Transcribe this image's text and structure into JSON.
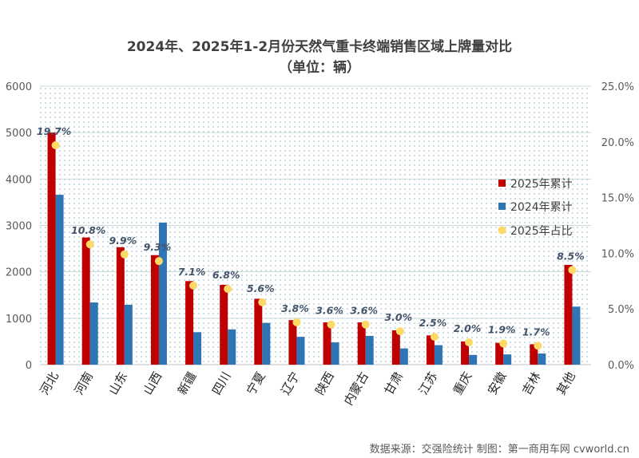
{
  "chart_data": {
    "type": "bar",
    "title": "2024年、2025年1-2月份天然气重卡终端销售区域上牌量对比",
    "subtitle": "（单位：辆）",
    "categories": [
      "河北",
      "河南",
      "山东",
      "山西",
      "新疆",
      "四川",
      "宁夏",
      "辽宁",
      "陕西",
      "内蒙古",
      "甘肃",
      "江苏",
      "重庆",
      "安徽",
      "吉林",
      "其他"
    ],
    "series": [
      {
        "name": "2025年累计",
        "type": "bar",
        "axis": "left",
        "color": "#c00000",
        "values": [
          5000,
          2740,
          2530,
          2360,
          1800,
          1720,
          1420,
          960,
          910,
          910,
          740,
          630,
          500,
          470,
          440,
          2150
        ]
      },
      {
        "name": "2024年累计",
        "type": "bar",
        "axis": "left",
        "color": "#2e75b6",
        "values": [
          3660,
          1340,
          1290,
          3060,
          700,
          760,
          900,
          600,
          480,
          620,
          350,
          420,
          210,
          220,
          240,
          1250
        ]
      },
      {
        "name": "2025年占比",
        "type": "scatter",
        "axis": "right",
        "color": "#ffd966",
        "values": [
          19.7,
          10.8,
          9.9,
          9.3,
          7.1,
          6.8,
          5.6,
          3.8,
          3.6,
          3.6,
          3.0,
          2.5,
          2.0,
          1.9,
          1.7,
          8.5
        ]
      }
    ],
    "share_labels": [
      "19.7%",
      "10.8%",
      "9.9%",
      "9.3%",
      "7.1%",
      "6.8%",
      "5.6%",
      "3.8%",
      "3.6%",
      "3.6%",
      "3.0%",
      "2.5%",
      "2.0%",
      "1.9%",
      "1.7%",
      "8.5%"
    ],
    "ylim": [
      0,
      6000
    ],
    "yticks": [
      "0",
      "1000",
      "2000",
      "3000",
      "4000",
      "5000",
      "6000"
    ],
    "y2lim": [
      0,
      25
    ],
    "y2ticks": [
      "0.0%",
      "5.0%",
      "10.0%",
      "15.0%",
      "20.0%",
      "25.0%"
    ],
    "legend_position": "right",
    "grid": true
  },
  "footer": "数据来源：交强险统计  制图：第一商用车网 cvworld.cn"
}
